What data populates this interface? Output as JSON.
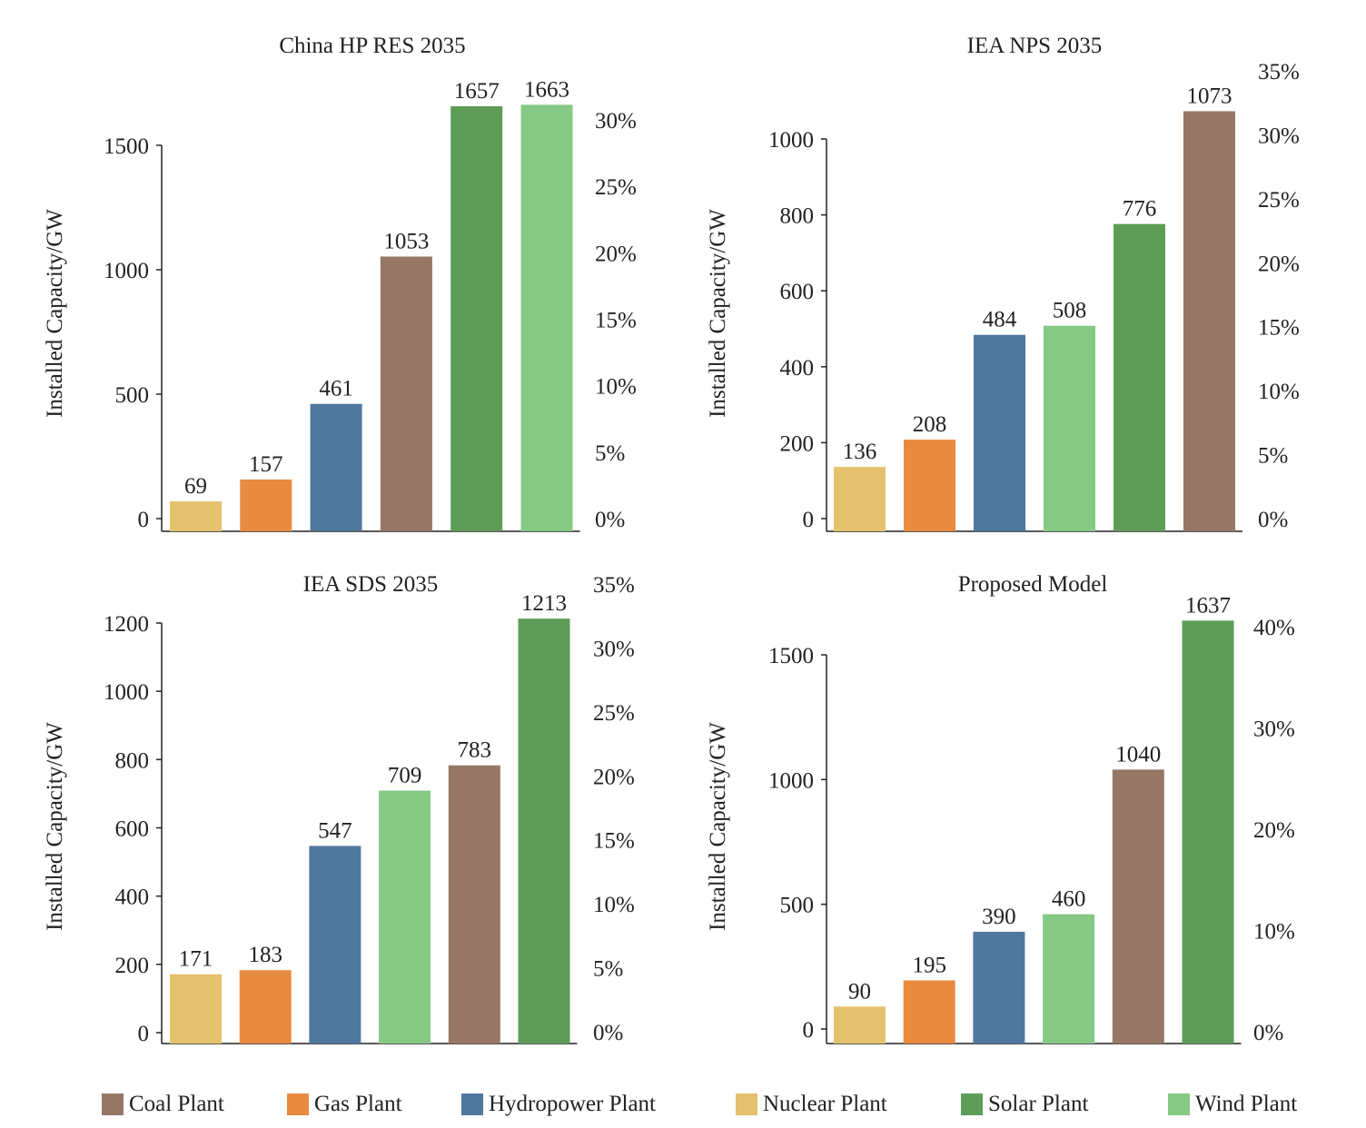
{
  "chart_data": [
    {
      "type": "bar",
      "title": "China HP RES 2035",
      "ylabel": "Installed Capacity/GW",
      "categories": [
        "Nuclear Plant",
        "Gas Plant",
        "Hydropower Plant",
        "Coal Plant",
        "Solar Plant",
        "Wind Plant"
      ],
      "values": [
        69,
        157,
        461,
        1053,
        1657,
        1663
      ],
      "ylim": [
        0,
        1520
      ],
      "yticks": [
        0,
        500,
        1000,
        1500
      ],
      "ytick_labels": [
        "0",
        "500",
        "1000",
        "1500"
      ],
      "y2ticks": [
        0,
        5,
        10,
        15,
        20,
        25,
        30
      ],
      "y2tick_labels": [
        "0%",
        "5%",
        "10%",
        "15%",
        "20%",
        "25%",
        "30%"
      ],
      "y2lim": [
        0,
        30
      ]
    },
    {
      "type": "bar",
      "title": "IEA NPS 2035",
      "ylabel": "Installed Capacity/GW",
      "categories": [
        "Nuclear Plant",
        "Gas Plant",
        "Hydropower Plant",
        "Wind Plant",
        "Solar Plant",
        "Coal Plant"
      ],
      "values": [
        136,
        208,
        484,
        508,
        776,
        1073
      ],
      "ylim": [
        0,
        1000
      ],
      "yticks": [
        0,
        200,
        400,
        600,
        800,
        1000
      ],
      "ytick_labels": [
        "0",
        "200",
        "400",
        "600",
        "800",
        "1000"
      ],
      "y2ticks": [
        0,
        5,
        10,
        15,
        20,
        25,
        30,
        35
      ],
      "y2tick_labels": [
        "0%",
        "5%",
        "10%",
        "15%",
        "20%",
        "25%",
        "30%",
        "35%"
      ],
      "y2lim": [
        0,
        30
      ]
    },
    {
      "type": "bar",
      "title": "IEA SDS 2035",
      "ylabel": "Installed Capacity/GW",
      "categories": [
        "Nuclear Plant",
        "Gas Plant",
        "Hydropower Plant",
        "Wind Plant",
        "Coal Plant",
        "Solar Plant"
      ],
      "values": [
        171,
        183,
        547,
        709,
        783,
        1213
      ],
      "ylim": [
        0,
        1200
      ],
      "yticks": [
        0,
        200,
        400,
        600,
        800,
        1000,
        1200
      ],
      "ytick_labels": [
        "0",
        "200",
        "400",
        "600",
        "800",
        "1000",
        "1200"
      ],
      "y2ticks": [
        0,
        5,
        10,
        15,
        20,
        25,
        30,
        35
      ],
      "y2tick_labels": [
        "0%",
        "5%",
        "10%",
        "15%",
        "20%",
        "25%",
        "30%",
        "35%"
      ],
      "y2lim": [
        0,
        30
      ]
    },
    {
      "type": "bar",
      "title": "Proposed Model",
      "ylabel": "Installed Capacity/GW",
      "categories": [
        "Nuclear Plant",
        "Gas Plant",
        "Hydropower Plant",
        "Wind Plant",
        "Coal Plant",
        "Solar Plant"
      ],
      "values": [
        90,
        195,
        390,
        460,
        1040,
        1637
      ],
      "ylim": [
        0,
        1500
      ],
      "yticks": [
        0,
        500,
        1000,
        1500
      ],
      "ytick_labels": [
        "0",
        "500",
        "1000",
        "1500"
      ],
      "y2ticks": [
        0,
        10,
        20,
        30,
        40
      ],
      "y2tick_labels": [
        "0%",
        "10%",
        "20%",
        "30%",
        "40%"
      ],
      "y2lim": [
        0,
        40
      ]
    }
  ],
  "legend": {
    "items": [
      {
        "label": "Coal Plant",
        "color": "#967766"
      },
      {
        "label": "Gas Plant",
        "color": "#e98a41"
      },
      {
        "label": "Hydropower Plant",
        "color": "#50779e"
      },
      {
        "label": "Nuclear Plant",
        "color": "#e4c16d"
      },
      {
        "label": "Solar Plant",
        "color": "#5e9d58"
      },
      {
        "label": "Wind Plant",
        "color": "#85c985"
      }
    ]
  },
  "colors": {
    "Coal Plant": "#967766",
    "Gas Plant": "#e98a41",
    "Hydropower Plant": "#50779e",
    "Nuclear Plant": "#e4c16d",
    "Solar Plant": "#5e9d58",
    "Wind Plant": "#85c985"
  }
}
